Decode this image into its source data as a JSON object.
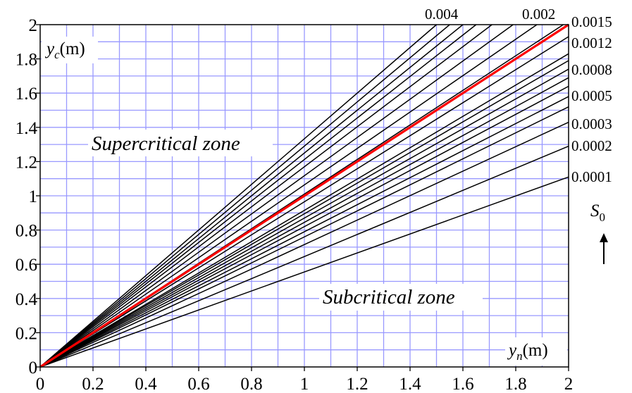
{
  "chart_data": {
    "type": "line",
    "xlabel": {
      "var": "y",
      "sub": "n",
      "unit": "(m)"
    },
    "ylabel": {
      "var": "y",
      "sub": "c",
      "unit": "(m)"
    },
    "xlim": [
      0,
      2
    ],
    "ylim": [
      0,
      2
    ],
    "grid": true,
    "xticks": [
      "0",
      "0.2",
      "0.4",
      "0.6",
      "0.8",
      "1",
      "1.2",
      "1.4",
      "1.6",
      "1.8",
      "2"
    ],
    "yticks": [
      "0",
      "0.2",
      "0.4",
      "0.6",
      "0.8",
      "1",
      "1.2",
      "1.4",
      "1.6",
      "1.8",
      "2"
    ],
    "slope_labels": [
      "0.004",
      "0.002",
      "0.0015",
      "0.0012",
      "0.0008",
      "0.0005",
      "0.0003",
      "0.0002",
      "0.0001"
    ],
    "slope_symbol": {
      "var": "S",
      "sub": "0"
    },
    "zones": {
      "upper": "Supercritical zone",
      "lower": "Subcritical zone"
    },
    "series": [
      {
        "color": "#000000",
        "x": [
          0,
          2
        ],
        "y": [
          0,
          1.11
        ]
      },
      {
        "color": "#000000",
        "x": [
          0,
          2
        ],
        "y": [
          0,
          1.29
        ]
      },
      {
        "color": "#000000",
        "x": [
          0,
          2
        ],
        "y": [
          0,
          1.43
        ]
      },
      {
        "color": "#000000",
        "x": [
          0,
          2
        ],
        "y": [
          0,
          1.52
        ]
      },
      {
        "color": "#000000",
        "x": [
          0,
          2
        ],
        "y": [
          0,
          1.58
        ]
      },
      {
        "color": "#000000",
        "x": [
          0,
          2
        ],
        "y": [
          0,
          1.64
        ]
      },
      {
        "color": "#000000",
        "x": [
          0,
          2
        ],
        "y": [
          0,
          1.69
        ]
      },
      {
        "color": "#000000",
        "x": [
          0,
          2
        ],
        "y": [
          0,
          1.74
        ]
      },
      {
        "color": "#000000",
        "x": [
          0,
          2
        ],
        "y": [
          0,
          1.79
        ]
      },
      {
        "color": "#000000",
        "x": [
          0,
          2
        ],
        "y": [
          0,
          1.83
        ]
      },
      {
        "color": "#000000",
        "x": [
          0,
          2
        ],
        "y": [
          0,
          1.93
        ]
      },
      {
        "color": "#000000",
        "x": [
          0,
          1.98
        ],
        "y": [
          0,
          2
        ]
      },
      {
        "color": "#000000",
        "x": [
          0,
          1.88
        ],
        "y": [
          0,
          2
        ]
      },
      {
        "color": "#000000",
        "x": [
          0,
          1.79
        ],
        "y": [
          0,
          2
        ]
      },
      {
        "color": "#000000",
        "x": [
          0,
          1.71
        ],
        "y": [
          0,
          2
        ]
      },
      {
        "color": "#000000",
        "x": [
          0,
          1.65
        ],
        "y": [
          0,
          2
        ]
      },
      {
        "color": "#000000",
        "x": [
          0,
          1.6
        ],
        "y": [
          0,
          2
        ]
      },
      {
        "color": "#000000",
        "x": [
          0,
          1.55
        ],
        "y": [
          0,
          2
        ]
      },
      {
        "color": "#000000",
        "x": [
          0,
          1.5
        ],
        "y": [
          0,
          2
        ]
      },
      {
        "color": "#ff0000",
        "x": [
          0,
          2
        ],
        "y": [
          0,
          2
        ]
      }
    ]
  }
}
